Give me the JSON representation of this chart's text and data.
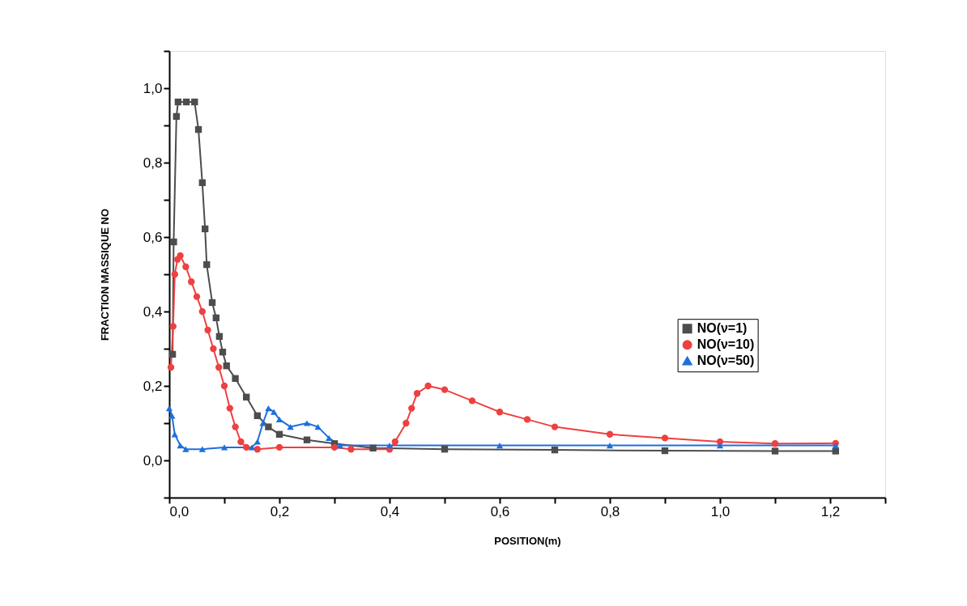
{
  "chart_data": {
    "type": "line",
    "xlabel": "POSITION(m)",
    "ylabel": "FRACTION MASSIQUE NO",
    "xlim": [
      0,
      1.3
    ],
    "ylim": [
      -0.1,
      1.1
    ],
    "xticks": [
      {
        "value": 0,
        "label": "0,0"
      },
      {
        "value": 0.1,
        "label": null
      },
      {
        "value": 0.2,
        "label": "0,2"
      },
      {
        "value": 0.3,
        "label": null
      },
      {
        "value": 0.4,
        "label": "0,4"
      },
      {
        "value": 0.5,
        "label": null
      },
      {
        "value": 0.6,
        "label": "0,6"
      },
      {
        "value": 0.7,
        "label": null
      },
      {
        "value": 0.8,
        "label": "0,8"
      },
      {
        "value": 0.9,
        "label": null
      },
      {
        "value": 1.0,
        "label": "1,0"
      },
      {
        "value": 1.1,
        "label": null
      },
      {
        "value": 1.2,
        "label": "1,2"
      },
      {
        "value": 1.3,
        "label": null
      }
    ],
    "yticks": [
      {
        "value": -0.1,
        "label": null
      },
      {
        "value": 0,
        "label": "0,0"
      },
      {
        "value": 0.1,
        "label": null
      },
      {
        "value": 0.2,
        "label": "0,2"
      },
      {
        "value": 0.3,
        "label": null
      },
      {
        "value": 0.4,
        "label": "0,4"
      },
      {
        "value": 0.5,
        "label": null
      },
      {
        "value": 0.6,
        "label": "0,6"
      },
      {
        "value": 0.7,
        "label": null
      },
      {
        "value": 0.8,
        "label": "0,8"
      },
      {
        "value": 0.9,
        "label": null
      },
      {
        "value": 1.0,
        "label": "1,0"
      },
      {
        "value": 1.1,
        "label": null
      }
    ],
    "grid": false,
    "legend": "right",
    "line_style": "solid",
    "series": [
      {
        "name": "NO(ν=1)",
        "color": "#4d4d4d",
        "marker": "square",
        "x": [
          0.006,
          0.008,
          0.013,
          0.016,
          0.031,
          0.046,
          0.053,
          0.06,
          0.065,
          0.068,
          0.078,
          0.085,
          0.091,
          0.097,
          0.104,
          0.12,
          0.14,
          0.16,
          0.18,
          0.2,
          0.25,
          0.3,
          0.37,
          0.5,
          0.7,
          0.9,
          1.1,
          1.21
        ],
        "values": [
          0.285,
          0.587,
          0.924,
          0.963,
          0.963,
          0.963,
          0.889,
          0.746,
          0.622,
          0.526,
          0.424,
          0.383,
          0.333,
          0.291,
          0.254,
          0.22,
          0.17,
          0.12,
          0.09,
          0.07,
          0.055,
          0.045,
          0.033,
          0.03,
          0.028,
          0.026,
          0.025,
          0.025
        ]
      },
      {
        "name": "NO(ν=10)",
        "color": "#ef4040",
        "marker": "circle",
        "x": [
          0.003,
          0.007,
          0.01,
          0.015,
          0.02,
          0.03,
          0.04,
          0.05,
          0.06,
          0.07,
          0.08,
          0.09,
          0.1,
          0.11,
          0.12,
          0.13,
          0.14,
          0.16,
          0.2,
          0.3,
          0.33,
          0.4,
          0.41,
          0.43,
          0.44,
          0.45,
          0.47,
          0.5,
          0.55,
          0.6,
          0.65,
          0.7,
          0.8,
          0.9,
          1.0,
          1.1,
          1.21
        ],
        "values": [
          0.25,
          0.36,
          0.5,
          0.54,
          0.55,
          0.52,
          0.48,
          0.44,
          0.4,
          0.35,
          0.3,
          0.25,
          0.2,
          0.14,
          0.09,
          0.05,
          0.035,
          0.03,
          0.035,
          0.035,
          0.03,
          0.03,
          0.05,
          0.1,
          0.14,
          0.18,
          0.2,
          0.19,
          0.16,
          0.13,
          0.11,
          0.09,
          0.07,
          0.06,
          0.05,
          0.045,
          0.046
        ]
      },
      {
        "name": "NO(ν=50)",
        "color": "#1e6fdc",
        "marker": "triangle",
        "x": [
          0.0,
          0.005,
          0.01,
          0.02,
          0.03,
          0.06,
          0.1,
          0.15,
          0.16,
          0.17,
          0.18,
          0.19,
          0.2,
          0.22,
          0.25,
          0.27,
          0.29,
          0.31,
          0.4,
          0.6,
          0.8,
          1.0,
          1.21
        ],
        "values": [
          0.14,
          0.12,
          0.07,
          0.04,
          0.03,
          0.03,
          0.035,
          0.035,
          0.05,
          0.1,
          0.14,
          0.13,
          0.11,
          0.09,
          0.1,
          0.09,
          0.06,
          0.04,
          0.04,
          0.04,
          0.04,
          0.04,
          0.04
        ]
      }
    ]
  }
}
